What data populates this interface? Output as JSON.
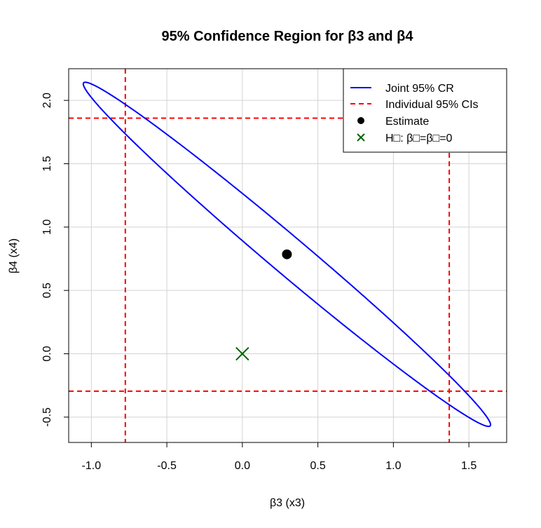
{
  "chart_data": {
    "type": "scatter",
    "title": "95% Confidence Region for β3 and β4",
    "xlabel": "β3 (x3)",
    "ylabel": "β4 (x4)",
    "xlim": [
      -1.15,
      1.75
    ],
    "ylim": [
      -0.7,
      2.25
    ],
    "x_ticks": [
      -1.0,
      -0.5,
      0.0,
      0.5,
      1.0,
      1.5
    ],
    "x_tick_labels": [
      "-1.0",
      "-0.5",
      "0.0",
      "0.5",
      "1.0",
      "1.5"
    ],
    "y_ticks": [
      -0.5,
      0.0,
      0.5,
      1.0,
      1.5,
      2.0
    ],
    "y_tick_labels": [
      "-0.5",
      "0.0",
      "0.5",
      "1.0",
      "1.5",
      "2.0"
    ],
    "grid": true,
    "legend_position": "top-right",
    "estimate": {
      "x": 0.295,
      "y": 0.785
    },
    "null_hypothesis_point": {
      "x": 0.0,
      "y": 0.0
    },
    "ellipse": {
      "center": [
        0.295,
        0.785
      ],
      "vertex_a": [
        1.64,
        -0.57
      ],
      "vertex_b": [
        -1.05,
        2.14
      ],
      "semi_minor": 0.135
    },
    "individual_ci": {
      "x": [
        -0.775,
        1.37
      ],
      "y": [
        -0.295,
        1.86
      ]
    },
    "series": [
      {
        "name": "Joint 95% CR",
        "kind": "ellipse",
        "color": "#0000ff",
        "line": "solid"
      },
      {
        "name": "Individual 95% CIs",
        "kind": "ci_lines",
        "color": "#ff0000",
        "line": "dashed"
      },
      {
        "name": "Estimate",
        "kind": "point",
        "color": "#000000",
        "marker": "filled-circle"
      },
      {
        "name": "H□: β□=β□=0",
        "kind": "point",
        "color": "#006400",
        "marker": "x"
      }
    ]
  }
}
